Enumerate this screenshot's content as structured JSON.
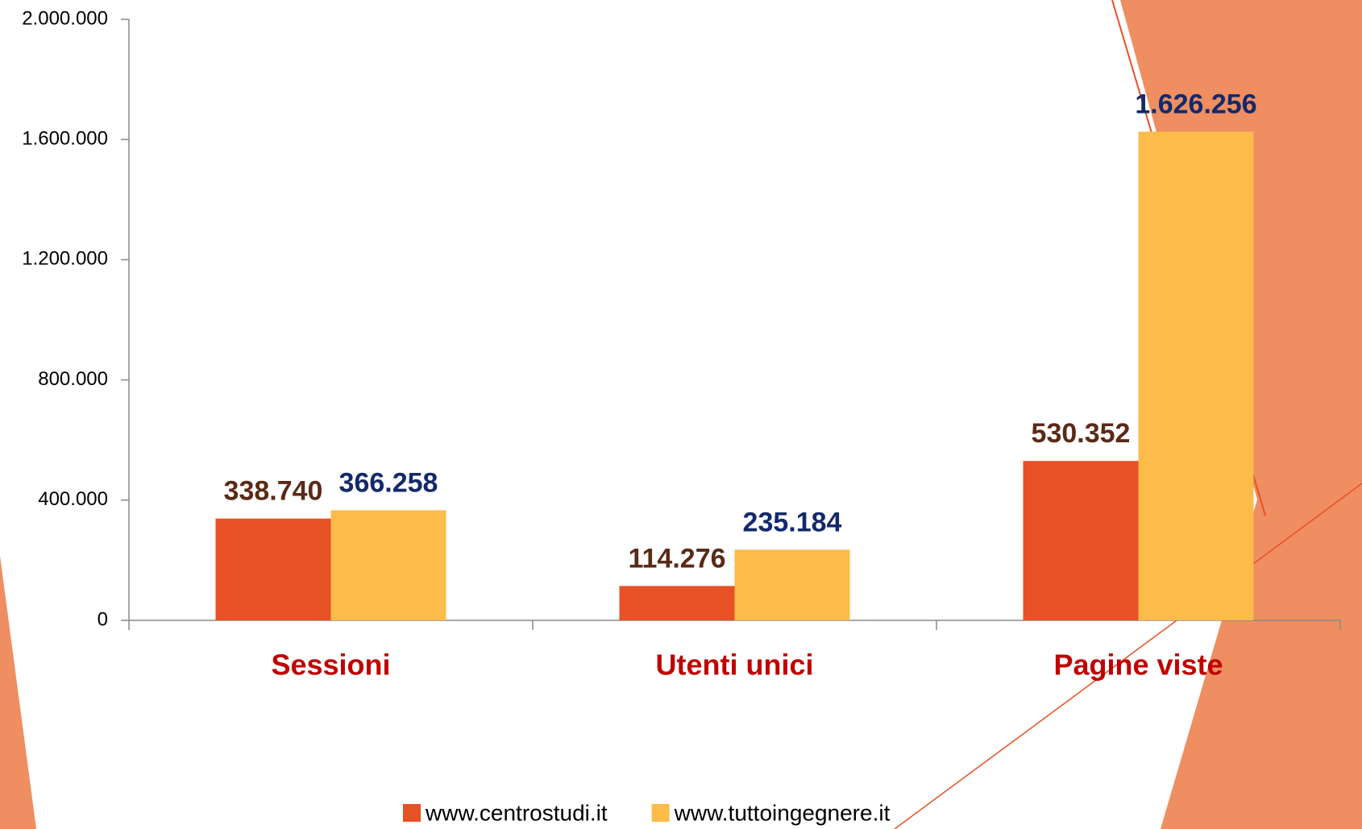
{
  "chart_data": {
    "type": "bar",
    "categories": [
      "Sessioni",
      "Utenti unici",
      "Pagine viste"
    ],
    "series": [
      {
        "name": "www.centrostudi.it",
        "color": "#e65125",
        "values": [
          338740,
          114276,
          530352
        ],
        "value_labels": [
          "338.740",
          "114.276",
          "530.352"
        ],
        "label_color": "#5a2a17"
      },
      {
        "name": "www.tuttoingegnere.it",
        "color": "#fdbb4a",
        "values": [
          366258,
          235184,
          1626256
        ],
        "value_labels": [
          "366.258",
          "235.184",
          "1.626.256"
        ],
        "label_color": "#13296b"
      }
    ],
    "ylim": [
      0,
      2000000
    ],
    "yticks": [
      0,
      {
        "value": 400000,
        "label": "400.000"
      },
      {
        "value": 800000,
        "label": "800.000"
      },
      {
        "value": 1200000,
        "label": "1.200.000"
      },
      {
        "value": 1600000,
        "label": "1.600.000"
      },
      {
        "value": 2000000,
        "label": "2.000.000"
      }
    ],
    "category_color": "#c00000"
  }
}
